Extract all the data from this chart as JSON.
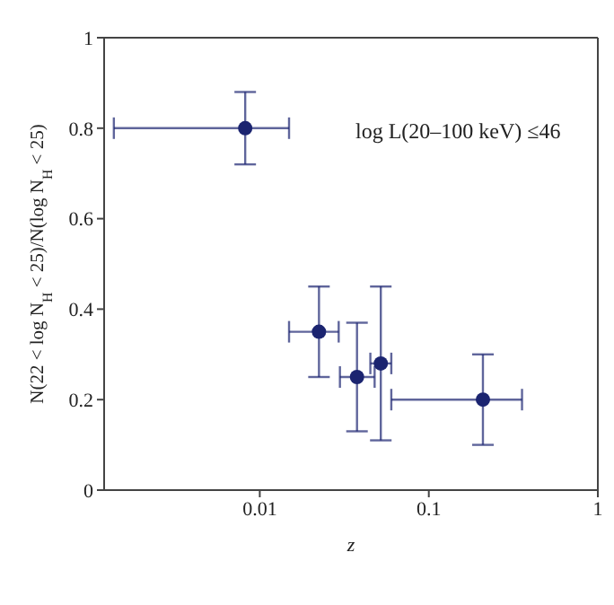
{
  "chart_data": {
    "type": "scatter",
    "xlabel": "z",
    "ylabel": "N(22 < log N$_{H}$ < 25)/N(log N$_{H}$ < 25)",
    "annotations": [
      "log L(20–100 keV) ≤46"
    ],
    "log": "x",
    "xlim": [
      0.0012,
      1
    ],
    "xticks": [
      0.01,
      0.1,
      1
    ],
    "ylim": [
      0,
      1
    ],
    "yticks": [
      0,
      0.2,
      0.4,
      0.6,
      0.8,
      1
    ],
    "grid": false,
    "legend": false,
    "marker": "circle",
    "x": [
      0.0082,
      0.0224,
      0.0376,
      0.052,
      0.209
    ],
    "series": [
      {
        "color": "#1b2470",
        "values": [
          0.8,
          0.35,
          0.25,
          0.28,
          0.2
        ],
        "errors": [
          [
            0.72,
            0.88
          ],
          [
            0.25,
            0.45
          ],
          [
            0.13,
            0.37
          ],
          [
            0.11,
            0.45
          ],
          [
            0.1,
            0.3
          ]
        ],
        "xerrors": [
          [
            0.00137,
            0.0149
          ],
          [
            0.0149,
            0.0293
          ],
          [
            0.0298,
            0.0478
          ],
          [
            0.0451,
            0.06
          ],
          [
            0.06,
            0.356
          ]
        ]
      }
    ]
  }
}
